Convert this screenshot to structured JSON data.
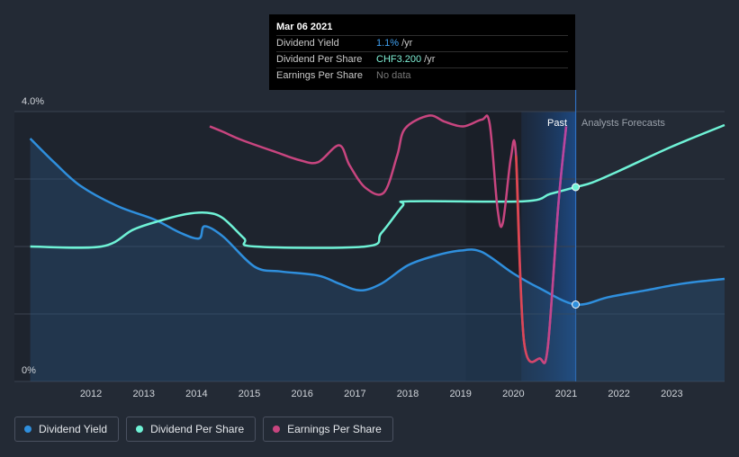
{
  "tooltip": {
    "date": "Mar 06 2021",
    "rows": [
      {
        "label": "Dividend Yield",
        "value": "1.1%",
        "unit": "/yr"
      },
      {
        "label": "Dividend Per Share",
        "value": "CHF3.200",
        "unit": "/yr"
      },
      {
        "label": "Earnings Per Share",
        "value": "No data",
        "unit": ""
      }
    ]
  },
  "legend": [
    {
      "label": "Dividend Yield",
      "color": "#2f8fdd"
    },
    {
      "label": "Dividend Per Share",
      "color": "#6ff2d6"
    },
    {
      "label": "Earnings Per Share",
      "color": "#c8457f"
    }
  ],
  "chart_data": {
    "type": "line",
    "region_labels": {
      "past": "Past",
      "forecast": "Analysts Forecasts"
    },
    "y_axis": {
      "labels": [
        "4.0%",
        "0%"
      ],
      "ylim": [
        0,
        4.0
      ]
    },
    "x_axis": {
      "ticks": [
        2012,
        2013,
        2014,
        2015,
        2016,
        2017,
        2018,
        2019,
        2020,
        2021,
        2022,
        2023
      ],
      "xlim": [
        2010.55,
        2024.0
      ]
    },
    "cursor_x": 2021.18,
    "forecast_start": 2021.18,
    "series": [
      {
        "name": "Dividend Yield",
        "color": "#2f8fdd",
        "area": true,
        "points": [
          [
            2010.85,
            3.6
          ],
          [
            2011.3,
            3.25
          ],
          [
            2011.8,
            2.9
          ],
          [
            2012.5,
            2.6
          ],
          [
            2013.2,
            2.4
          ],
          [
            2013.7,
            2.2
          ],
          [
            2014.05,
            2.12
          ],
          [
            2014.15,
            2.3
          ],
          [
            2014.5,
            2.15
          ],
          [
            2015.1,
            1.7
          ],
          [
            2015.6,
            1.63
          ],
          [
            2016.3,
            1.57
          ],
          [
            2016.7,
            1.45
          ],
          [
            2017.1,
            1.35
          ],
          [
            2017.5,
            1.45
          ],
          [
            2018.0,
            1.72
          ],
          [
            2018.5,
            1.86
          ],
          [
            2019.0,
            1.94
          ],
          [
            2019.4,
            1.92
          ],
          [
            2020.0,
            1.6
          ],
          [
            2020.5,
            1.38
          ],
          [
            2021.18,
            1.14
          ],
          [
            2021.8,
            1.25
          ],
          [
            2022.5,
            1.35
          ],
          [
            2023.2,
            1.45
          ],
          [
            2024.0,
            1.52
          ]
        ]
      },
      {
        "name": "Dividend Per Share",
        "color": "#6ff2d6",
        "points": [
          [
            2010.85,
            2.0
          ],
          [
            2012.2,
            2.0
          ],
          [
            2012.8,
            2.25
          ],
          [
            2013.3,
            2.38
          ],
          [
            2013.8,
            2.48
          ],
          [
            2014.2,
            2.5
          ],
          [
            2014.5,
            2.42
          ],
          [
            2014.9,
            2.12
          ],
          [
            2015.1,
            2.0
          ],
          [
            2017.2,
            2.0
          ],
          [
            2017.5,
            2.2
          ],
          [
            2017.9,
            2.6
          ],
          [
            2018.05,
            2.67
          ],
          [
            2020.2,
            2.67
          ],
          [
            2020.7,
            2.78
          ],
          [
            2021.18,
            2.88
          ],
          [
            2021.5,
            2.95
          ],
          [
            2022.0,
            3.12
          ],
          [
            2023.0,
            3.48
          ],
          [
            2024.0,
            3.8
          ]
        ]
      },
      {
        "name": "Earnings Per Share",
        "color": "#c8457f",
        "points": [
          [
            2014.25,
            3.78
          ],
          [
            2014.5,
            3.7
          ],
          [
            2014.85,
            3.58
          ],
          [
            2015.5,
            3.4
          ],
          [
            2015.95,
            3.28
          ],
          [
            2016.3,
            3.25
          ],
          [
            2016.7,
            3.5
          ],
          [
            2016.9,
            3.2
          ],
          [
            2017.2,
            2.87
          ],
          [
            2017.55,
            2.8
          ],
          [
            2017.8,
            3.35
          ],
          [
            2017.95,
            3.75
          ],
          [
            2018.4,
            3.94
          ],
          [
            2018.7,
            3.85
          ],
          [
            2019.05,
            3.78
          ],
          [
            2019.4,
            3.88
          ],
          [
            2019.55,
            3.82
          ],
          [
            2019.7,
            2.55
          ],
          [
            2019.8,
            2.35
          ],
          [
            2019.95,
            3.3
          ],
          [
            2020.05,
            3.35
          ],
          [
            2020.2,
            0.6
          ],
          [
            2020.5,
            0.34
          ],
          [
            2020.65,
            0.5
          ],
          [
            2020.85,
            2.6
          ],
          [
            2021.0,
            3.78
          ]
        ]
      }
    ]
  }
}
